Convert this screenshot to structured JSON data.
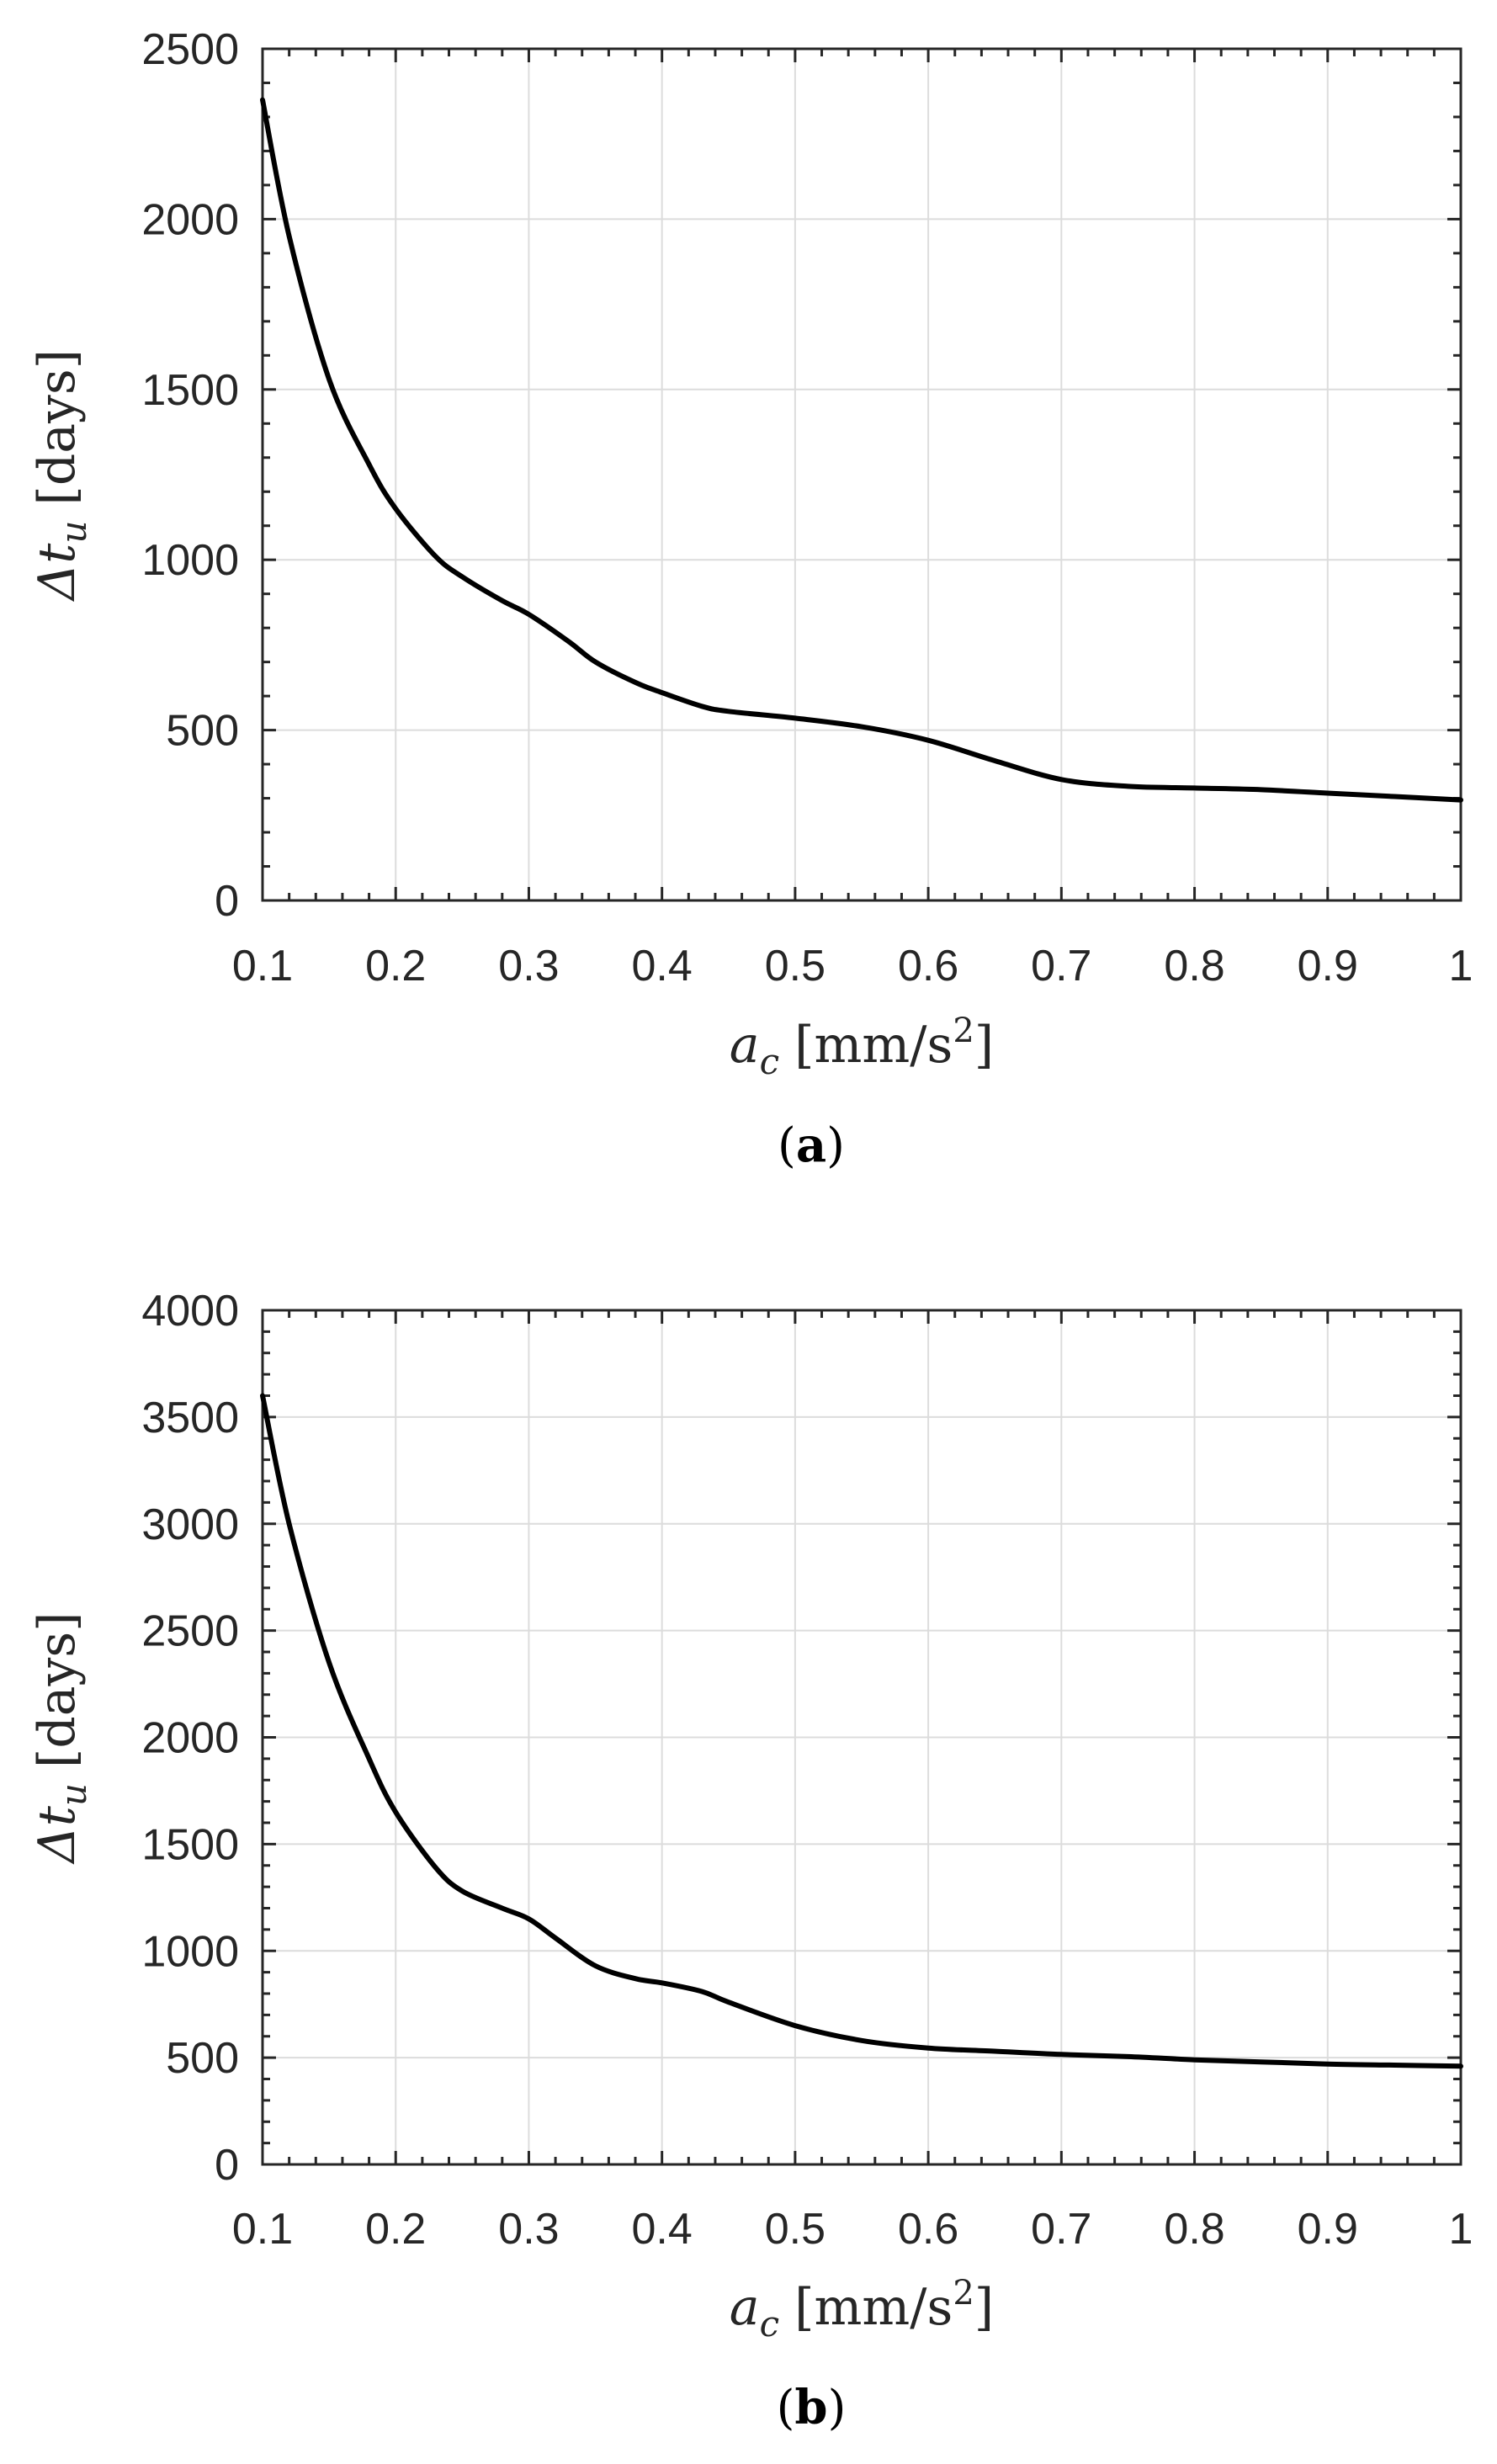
{
  "chart_data": [
    {
      "type": "line",
      "panel_label": "(a)",
      "panel_letter": "a",
      "xlabel": "a_c [mm/s²]",
      "xlabel_parts": {
        "var": "a",
        "sub": "c",
        "unit_pre": "[mm/s",
        "unit_sup": "2",
        "unit_post": "]"
      },
      "ylabel": "Δt_u [days]",
      "ylabel_parts": {
        "var": "Δt",
        "sub": "u",
        "unit": "[days]"
      },
      "xlim": [
        0.1,
        1
      ],
      "ylim": [
        0,
        2500
      ],
      "xticks": [
        0.1,
        0.2,
        0.3,
        0.4,
        0.5,
        0.6,
        0.7,
        0.8,
        0.9,
        1
      ],
      "xtick_labels": [
        "0.1",
        "0.2",
        "0.3",
        "0.4",
        "0.5",
        "0.6",
        "0.7",
        "0.8",
        "0.9",
        "1"
      ],
      "yticks": [
        0,
        500,
        1000,
        1500,
        2000,
        2500
      ],
      "ytick_labels": [
        "0",
        "500",
        "1000",
        "1500",
        "2000",
        "2500"
      ],
      "grid": true,
      "line_color": "#000000",
      "x": [
        0.1,
        0.12,
        0.15,
        0.18,
        0.2,
        0.23,
        0.25,
        0.28,
        0.3,
        0.33,
        0.35,
        0.38,
        0.4,
        0.43,
        0.45,
        0.5,
        0.55,
        0.6,
        0.65,
        0.7,
        0.75,
        0.8,
        0.85,
        0.9,
        0.95,
        1.0
      ],
      "y": [
        2350,
        1950,
        1530,
        1280,
        1150,
        1010,
        950,
        880,
        840,
        760,
        700,
        640,
        610,
        570,
        555,
        535,
        510,
        470,
        410,
        355,
        335,
        330,
        325,
        315,
        305,
        295
      ]
    },
    {
      "type": "line",
      "panel_label": "(b)",
      "panel_letter": "b",
      "xlabel": "a_c [mm/s²]",
      "xlabel_parts": {
        "var": "a",
        "sub": "c",
        "unit_pre": "[mm/s",
        "unit_sup": "2",
        "unit_post": "]"
      },
      "ylabel": "Δt_u [days]",
      "ylabel_parts": {
        "var": "Δt",
        "sub": "u",
        "unit": "[days]"
      },
      "xlim": [
        0.1,
        1
      ],
      "ylim": [
        0,
        4000
      ],
      "xticks": [
        0.1,
        0.2,
        0.3,
        0.4,
        0.5,
        0.6,
        0.7,
        0.8,
        0.9,
        1
      ],
      "xtick_labels": [
        "0.1",
        "0.2",
        "0.3",
        "0.4",
        "0.5",
        "0.6",
        "0.7",
        "0.8",
        "0.9",
        "1"
      ],
      "yticks": [
        0,
        500,
        1000,
        1500,
        2000,
        2500,
        3000,
        3500,
        4000
      ],
      "ytick_labels": [
        "0",
        "500",
        "1000",
        "1500",
        "2000",
        "2500",
        "3000",
        "3500",
        "4000"
      ],
      "grid": true,
      "line_color": "#000000",
      "x": [
        0.1,
        0.12,
        0.15,
        0.18,
        0.2,
        0.23,
        0.25,
        0.28,
        0.3,
        0.32,
        0.35,
        0.38,
        0.4,
        0.43,
        0.45,
        0.5,
        0.55,
        0.6,
        0.65,
        0.7,
        0.75,
        0.8,
        0.85,
        0.9,
        0.95,
        1.0
      ],
      "y": [
        3600,
        3000,
        2350,
        1900,
        1650,
        1390,
        1280,
        1200,
        1150,
        1060,
        930,
        870,
        850,
        810,
        760,
        650,
        580,
        545,
        530,
        515,
        505,
        490,
        480,
        470,
        465,
        460
      ]
    }
  ]
}
